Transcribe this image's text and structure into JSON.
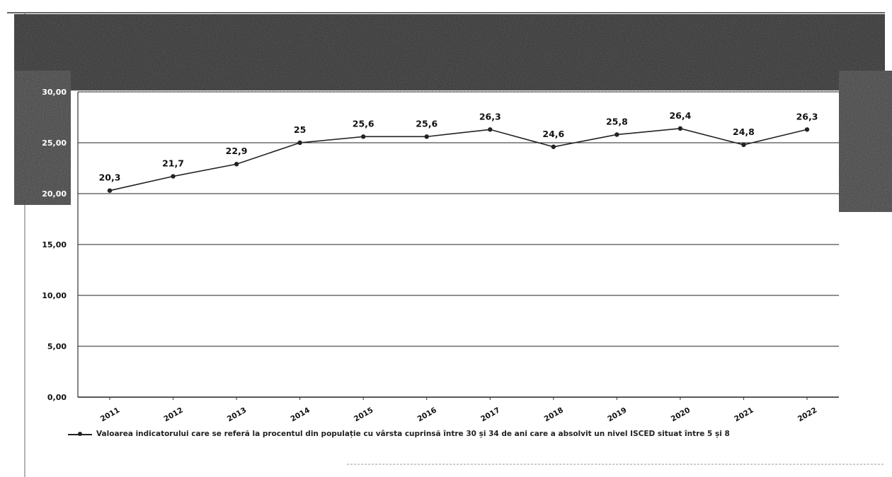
{
  "header_corner": "",
  "chart_data": {
    "type": "line",
    "title": "",
    "xlabel": "",
    "ylabel": "",
    "categories": [
      "2011",
      "2012",
      "2013",
      "2014",
      "2015",
      "2016",
      "2017",
      "2018",
      "2019",
      "2020",
      "2021",
      "2022"
    ],
    "series": [
      {
        "name": "Valoarea indicatorului care se referă la procentul din populație cu vârsta cuprinsă între 30 și 34 de ani care a absolvit un nivel ISCED situat între 5 și 8",
        "values": [
          20.3,
          21.7,
          22.9,
          25,
          25.6,
          25.6,
          26.3,
          24.6,
          25.8,
          26.4,
          24.8,
          26.3
        ],
        "labels": [
          "20,3",
          "21,7",
          "22,9",
          "25",
          "25,6",
          "25,6",
          "26,3",
          "24,6",
          "25,8",
          "26,4",
          "24,8",
          "26,3"
        ]
      }
    ],
    "yticks": [
      "0,00",
      "5,00",
      "10,00",
      "15,00",
      "20,00",
      "25,00",
      "30,00"
    ],
    "ytick_values": [
      0,
      5,
      10,
      15,
      20,
      25,
      30
    ],
    "ylim": [
      0,
      30
    ],
    "grid": true,
    "legend": "bottom",
    "colors": {
      "line": "#222222",
      "band": "#2e2e2e",
      "grid": "#222222"
    }
  }
}
